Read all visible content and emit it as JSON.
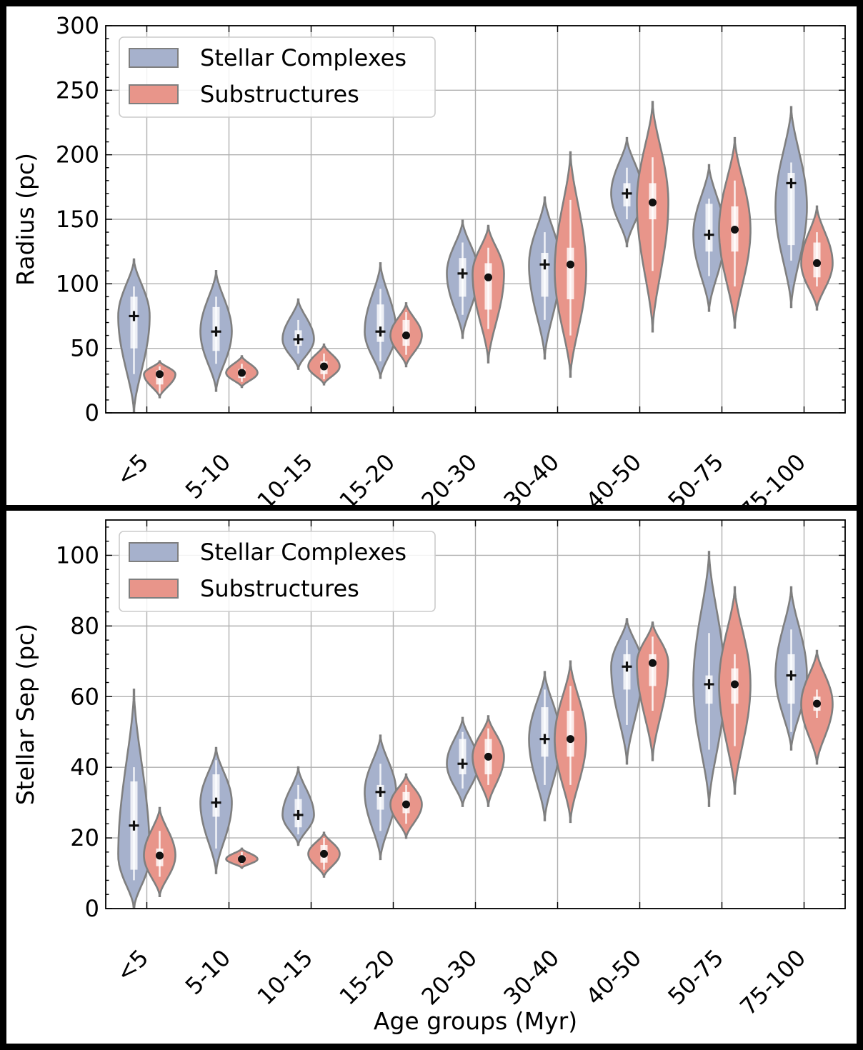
{
  "chart_data": [
    {
      "type": "violin",
      "xlabel": "",
      "ylabel": "Radius (pc)",
      "ylim": [
        0,
        300
      ],
      "yticks": [
        0,
        50,
        100,
        150,
        200,
        250,
        300
      ],
      "grid": true,
      "legend_placement": "top-left",
      "categories": [
        "<5",
        "5-10",
        "10-15",
        "15-20",
        "20-30",
        "30-40",
        "40-50",
        "50-75",
        "75-100"
      ],
      "series": [
        {
          "name": "Stellar Complexes",
          "color": "#a6b1cc",
          "marker": "plus",
          "median": [
            75,
            63,
            57,
            63,
            108,
            115,
            170,
            138,
            178
          ],
          "q1": [
            50,
            48,
            52,
            55,
            90,
            90,
            160,
            125,
            130
          ],
          "q3": [
            90,
            82,
            64,
            84,
            120,
            124,
            178,
            162,
            186
          ],
          "min": [
            0,
            17,
            34,
            27,
            58,
            42,
            129,
            79,
            82
          ],
          "max": [
            119,
            110,
            88,
            116,
            149,
            167,
            213,
            192,
            237
          ],
          "whisker_low": [
            30,
            38,
            46,
            40,
            76,
            72,
            150,
            106,
            118
          ],
          "whisker_high": [
            98,
            90,
            72,
            96,
            132,
            140,
            190,
            166,
            194
          ],
          "mode": [
            75,
            63,
            57,
            63,
            108,
            115,
            170,
            138,
            160
          ]
        },
        {
          "name": "Substructures",
          "color": "#e8958a",
          "marker": "dot",
          "median": [
            30,
            31,
            36,
            60,
            105,
            115,
            163,
            142,
            116
          ],
          "q1": [
            22,
            27,
            30,
            52,
            80,
            88,
            150,
            125,
            105
          ],
          "q3": [
            33,
            34,
            40,
            72,
            116,
            128,
            178,
            160,
            132
          ],
          "min": [
            12,
            20,
            22,
            36,
            39,
            28,
            63,
            66,
            80
          ],
          "max": [
            40,
            44,
            53,
            85,
            145,
            202,
            241,
            213,
            160
          ],
          "whisker_low": [
            15,
            24,
            26,
            45,
            65,
            60,
            110,
            98,
            98
          ],
          "whisker_high": [
            36,
            38,
            46,
            78,
            128,
            165,
            198,
            180,
            140
          ],
          "mode": [
            30,
            31,
            36,
            60,
            108,
            110,
            163,
            142,
            116
          ]
        }
      ]
    },
    {
      "type": "violin",
      "xlabel": "Age groups (Myr)",
      "ylabel": "Stellar Sep (pc)",
      "ylim": [
        0,
        110
      ],
      "yticks": [
        0,
        20,
        40,
        60,
        80,
        100
      ],
      "grid": true,
      "legend_placement": "top-left",
      "categories": [
        "<5",
        "5-10",
        "10-15",
        "15-20",
        "20-30",
        "30-40",
        "40-50",
        "50-75",
        "75-100"
      ],
      "series": [
        {
          "name": "Stellar Complexes",
          "color": "#a6b1cc",
          "marker": "plus",
          "median": [
            23.5,
            30,
            26.5,
            33,
            41,
            48,
            68.5,
            63.5,
            66
          ],
          "q1": [
            11,
            26,
            23,
            28,
            38,
            43,
            62,
            58,
            58
          ],
          "q3": [
            36,
            38,
            31,
            35,
            48,
            57,
            72,
            66,
            72
          ],
          "min": [
            0,
            10,
            18,
            14,
            29,
            25,
            41,
            29,
            45
          ],
          "max": [
            62,
            45.5,
            40,
            49,
            54,
            67,
            82,
            101,
            91
          ],
          "whisker_low": [
            8,
            17,
            21,
            22,
            34,
            35,
            52,
            45,
            50
          ],
          "whisker_high": [
            40,
            42,
            35,
            41,
            50,
            62,
            76,
            78,
            79
          ],
          "mode": [
            15,
            30,
            26.5,
            33,
            41,
            48,
            68.5,
            63.5,
            66
          ]
        },
        {
          "name": "Substructures",
          "color": "#e8958a",
          "marker": "dot",
          "median": [
            15,
            14,
            15.5,
            29.5,
            43,
            48,
            69.5,
            63.5,
            58
          ],
          "q1": [
            12,
            13.5,
            13,
            27,
            38,
            43,
            63,
            58,
            56
          ],
          "q3": [
            17,
            15,
            18,
            33,
            48,
            56,
            72,
            68,
            60
          ],
          "min": [
            3.5,
            11.5,
            9,
            20,
            29,
            24.5,
            42,
            32.5,
            41
          ],
          "max": [
            28.5,
            17,
            21.5,
            38,
            54.5,
            70,
            81,
            91,
            73
          ],
          "whisker_low": [
            9,
            12.5,
            11,
            24,
            35,
            35,
            56,
            46,
            54
          ],
          "whisker_high": [
            22,
            16,
            20,
            35,
            51,
            63,
            77,
            72,
            62
          ],
          "mode": [
            15,
            14,
            15.5,
            29.5,
            43,
            48,
            69.5,
            63.5,
            58
          ]
        }
      ]
    }
  ]
}
